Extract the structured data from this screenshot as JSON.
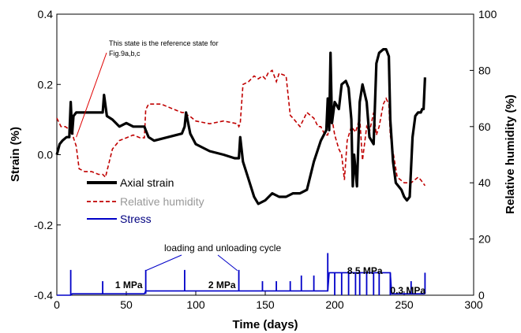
{
  "chart_data": {
    "type": "line",
    "xlabel": "Time (days)",
    "ylabel_left": "Strain (%)",
    "ylabel_right": "Relative humidity  (%)",
    "xlim": [
      0,
      300
    ],
    "ylim_left": [
      -0.4,
      0.4
    ],
    "ylim_right": [
      0,
      100
    ],
    "x_ticks": [
      "0",
      "50",
      "100",
      "150",
      "200",
      "250",
      "300"
    ],
    "y_left_ticks": [
      "-0.4",
      "-0.2",
      "0.0",
      "0.2",
      "0.4"
    ],
    "y_right_ticks": [
      "0",
      "20",
      "40",
      "60",
      "80",
      "100"
    ],
    "grid": false,
    "legend": {
      "placement": "lower-left",
      "entries": [
        "Axial strain",
        "Relative humidity",
        "Stress"
      ]
    },
    "colors": {
      "axial_strain": "#000000",
      "relative_humidity": "#c00000",
      "stress": "#0000c8",
      "legend_rh_text": "#999999"
    },
    "series": [
      {
        "name": "Axial strain",
        "axis": "left",
        "style": "solid-thick",
        "x": [
          0,
          2,
          4,
          7,
          9,
          10,
          11,
          12,
          14,
          16,
          20,
          25,
          30,
          33,
          34,
          36,
          40,
          45,
          50,
          55,
          60,
          63,
          64,
          66,
          70,
          80,
          90,
          92,
          93,
          96,
          100,
          110,
          120,
          128,
          131,
          132,
          134,
          138,
          142,
          145,
          150,
          155,
          160,
          165,
          170,
          175,
          180,
          185,
          190,
          194,
          195,
          196,
          197,
          198,
          200,
          203,
          205,
          208,
          210,
          212,
          213,
          214,
          216,
          218,
          220,
          223,
          225,
          228,
          230,
          232,
          235,
          237,
          239,
          240,
          242,
          244,
          246,
          248,
          250,
          252,
          254,
          256,
          258,
          260,
          262,
          263,
          264,
          265
        ],
        "values": [
          0.0,
          0.03,
          0.04,
          0.05,
          0.05,
          0.15,
          0.06,
          0.11,
          0.12,
          0.12,
          0.12,
          0.12,
          0.12,
          0.12,
          0.17,
          0.11,
          0.1,
          0.08,
          0.09,
          0.08,
          0.08,
          0.08,
          0.07,
          0.05,
          0.04,
          0.05,
          0.06,
          0.08,
          0.12,
          0.06,
          0.03,
          0.01,
          0.0,
          -0.01,
          -0.01,
          0.05,
          -0.02,
          -0.07,
          -0.12,
          -0.14,
          -0.13,
          -0.11,
          -0.12,
          -0.12,
          -0.11,
          -0.11,
          -0.1,
          -0.02,
          0.04,
          0.07,
          0.16,
          0.07,
          0.29,
          0.09,
          0.15,
          0.13,
          0.2,
          0.21,
          0.19,
          0.1,
          -0.09,
          0.0,
          -0.09,
          0.15,
          0.2,
          0.15,
          0.05,
          0.03,
          0.26,
          0.29,
          0.3,
          0.3,
          0.28,
          0.1,
          -0.02,
          -0.08,
          -0.09,
          -0.1,
          -0.12,
          -0.13,
          -0.12,
          0.05,
          0.11,
          0.12,
          0.12,
          0.13,
          0.13,
          0.22
        ]
      },
      {
        "name": "Relative humidity",
        "axis": "right",
        "style": "dashed",
        "x": [
          0,
          3,
          6,
          9,
          10,
          11,
          12,
          14,
          16,
          20,
          25,
          30,
          33,
          35,
          40,
          45,
          50,
          55,
          60,
          63,
          64,
          66,
          70,
          75,
          80,
          85,
          90,
          92,
          93,
          95,
          100,
          110,
          120,
          130,
          131,
          132,
          134,
          138,
          142,
          145,
          148,
          150,
          152,
          155,
          158,
          160,
          165,
          168,
          170,
          175,
          180,
          185,
          188,
          190,
          193,
          195,
          196,
          197,
          198,
          200,
          203,
          205,
          207,
          209,
          212,
          215,
          218,
          220,
          223,
          225,
          228,
          230,
          232,
          235,
          237,
          239,
          240,
          245,
          250,
          255,
          260,
          262,
          265
        ],
        "values": [
          63,
          60,
          60,
          59,
          58,
          60,
          56,
          53,
          45,
          44,
          44,
          43,
          43,
          42,
          52,
          55,
          56,
          57,
          56,
          56,
          66,
          68,
          68,
          68,
          67,
          66,
          65,
          65,
          64,
          64,
          62,
          61,
          62,
          61,
          60,
          61,
          75,
          76,
          78,
          77,
          78,
          77,
          79,
          80,
          76,
          79,
          78,
          64,
          63,
          60,
          65,
          63,
          60,
          60,
          57,
          57,
          60,
          62,
          63,
          57,
          52,
          50,
          41,
          55,
          60,
          58,
          63,
          48,
          60,
          58,
          65,
          57,
          60,
          68,
          70,
          68,
          57,
          42,
          40,
          40,
          42,
          41,
          39
        ]
      },
      {
        "name": "Stress",
        "axis": "right",
        "style": "solid",
        "baseline_x": [
          0,
          9,
          10,
          11,
          63,
          64,
          65,
          195,
          196,
          197,
          240,
          241,
          265
        ],
        "baseline_values": [
          0,
          0,
          0,
          0.5,
          0.5,
          1.5,
          1.5,
          1.5,
          8,
          8,
          8,
          0.5,
          0.5
        ],
        "spikes": [
          {
            "x": 10,
            "peak": 9,
            "base": 0
          },
          {
            "x": 33,
            "peak": 5,
            "base": 0.5
          },
          {
            "x": 64,
            "peak": 9,
            "base": 0.5
          },
          {
            "x": 92,
            "peak": 9,
            "base": 1.5
          },
          {
            "x": 131,
            "peak": 9,
            "base": 1.5
          },
          {
            "x": 148,
            "peak": 5,
            "base": 1.5
          },
          {
            "x": 158,
            "peak": 5,
            "base": 1.5
          },
          {
            "x": 168,
            "peak": 5,
            "base": 1.5
          },
          {
            "x": 176,
            "peak": 7,
            "base": 1.5
          },
          {
            "x": 185,
            "peak": 7,
            "base": 1.5
          },
          {
            "x": 195,
            "peak": 15,
            "base": 1.5
          },
          {
            "x": 200,
            "peak": 0,
            "base": 8
          },
          {
            "x": 205,
            "peak": 0,
            "base": 8
          },
          {
            "x": 210,
            "peak": 0,
            "base": 8
          },
          {
            "x": 215,
            "peak": 0,
            "base": 8
          },
          {
            "x": 218,
            "peak": 0,
            "base": 8
          },
          {
            "x": 223,
            "peak": 0,
            "base": 8
          },
          {
            "x": 228,
            "peak": 0,
            "base": 8
          },
          {
            "x": 232,
            "peak": 0,
            "base": 8
          },
          {
            "x": 240,
            "peak": 0,
            "base": 8
          },
          {
            "x": 255,
            "peak": 5,
            "base": 0.5
          },
          {
            "x": 265,
            "peak": 8,
            "base": 0.5
          }
        ]
      }
    ],
    "annotations": {
      "reference_note": {
        "line1": "This state is the reference state for",
        "line2": "Fig.9a,b,c",
        "arrow_to": {
          "x": 14,
          "y": 0.05
        }
      },
      "cycle_note": {
        "text": "loading and unloading cycle",
        "arrow_to_1": {
          "x": 64,
          "y": -0.33
        },
        "arrow_to_2": {
          "x": 130,
          "y": -0.33
        }
      },
      "stress_labels": [
        {
          "text": "1 MPa",
          "x": 42,
          "y": -0.38
        },
        {
          "text": "2 MPa",
          "x": 109,
          "y": -0.38
        },
        {
          "text": "8.5 MPa",
          "x": 209,
          "y": -0.34
        },
        {
          "text": "0.3 MPa",
          "x": 240,
          "y": -0.395
        }
      ]
    }
  }
}
